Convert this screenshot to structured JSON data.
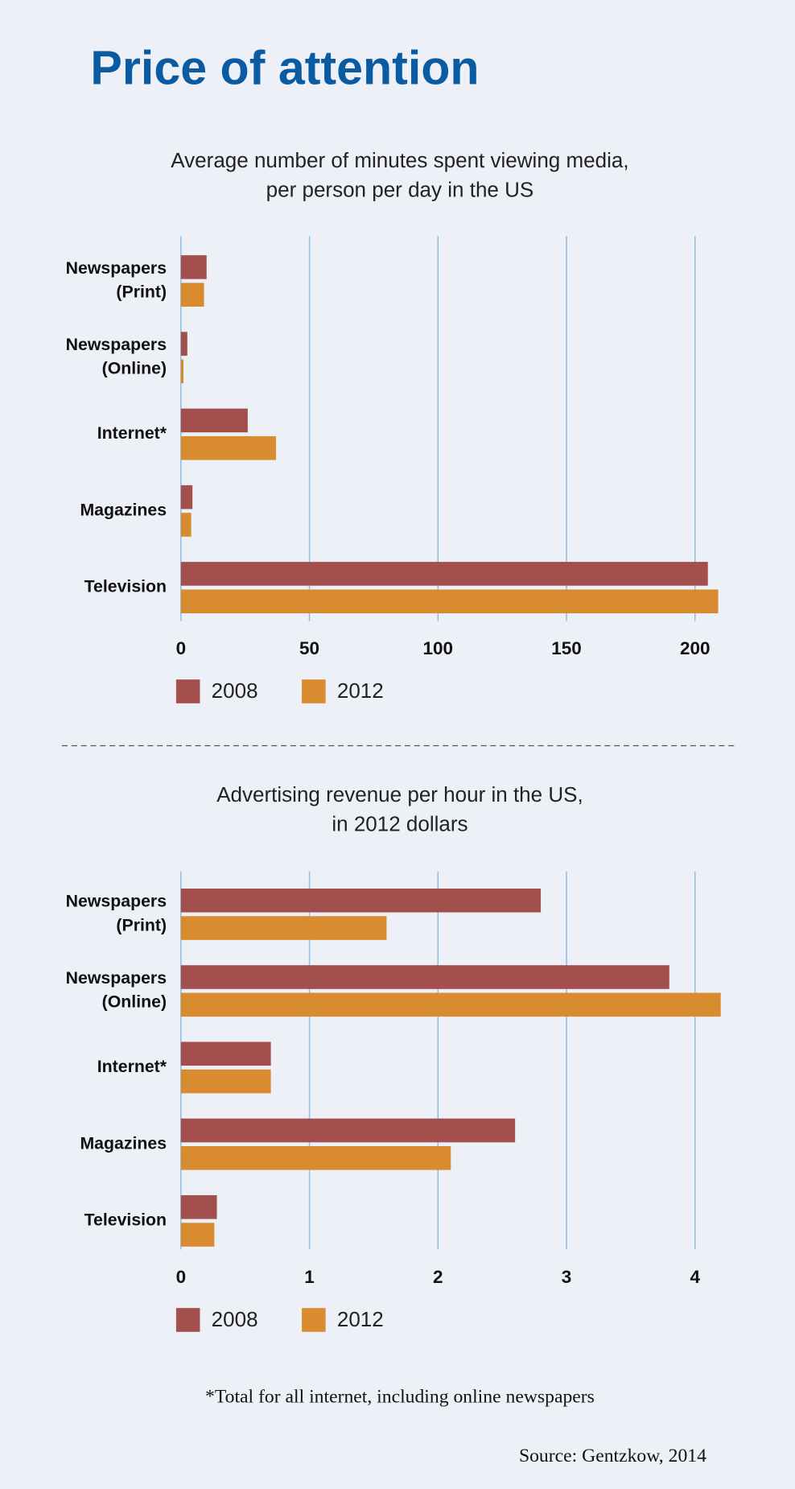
{
  "title": "Price of attention",
  "chart_data": [
    {
      "type": "bar",
      "title": [
        "Average number of minutes spent viewing media,",
        "per person per day in the US"
      ],
      "categories": [
        [
          "Newspapers",
          "(Print)"
        ],
        [
          "Newspapers",
          "(Online)"
        ],
        [
          "Internet*"
        ],
        [
          "Magazines"
        ],
        [
          "Television"
        ]
      ],
      "series": [
        {
          "name": "2008",
          "color": "#a34f4d",
          "values": [
            10,
            2.5,
            26,
            4.5,
            205
          ]
        },
        {
          "name": "2012",
          "color": "#d98b2f",
          "values": [
            9,
            1,
            37,
            4,
            209
          ]
        }
      ],
      "xlim": [
        0,
        212
      ],
      "xticks": [
        0,
        50,
        100,
        150,
        200
      ],
      "grid": true
    },
    {
      "type": "bar",
      "title": [
        "Advertising revenue per hour in the US,",
        "in 2012 dollars"
      ],
      "categories": [
        [
          "Newspapers",
          "(Print)"
        ],
        [
          "Newspapers",
          "(Online)"
        ],
        [
          "Internet*"
        ],
        [
          "Magazines"
        ],
        [
          "Television"
        ]
      ],
      "series": [
        {
          "name": "2008",
          "color": "#a34f4d",
          "values": [
            2.8,
            3.8,
            0.7,
            2.6,
            0.28
          ]
        },
        {
          "name": "2012",
          "color": "#d98b2f",
          "values": [
            1.6,
            4.2,
            0.7,
            2.1,
            0.26
          ]
        }
      ],
      "xlim": [
        0,
        4.25
      ],
      "xticks": [
        0,
        1,
        2,
        3,
        4
      ],
      "grid": true
    }
  ],
  "footnote": "*Total for all internet, including online newspapers",
  "source": "Source: Gentzkow, 2014"
}
